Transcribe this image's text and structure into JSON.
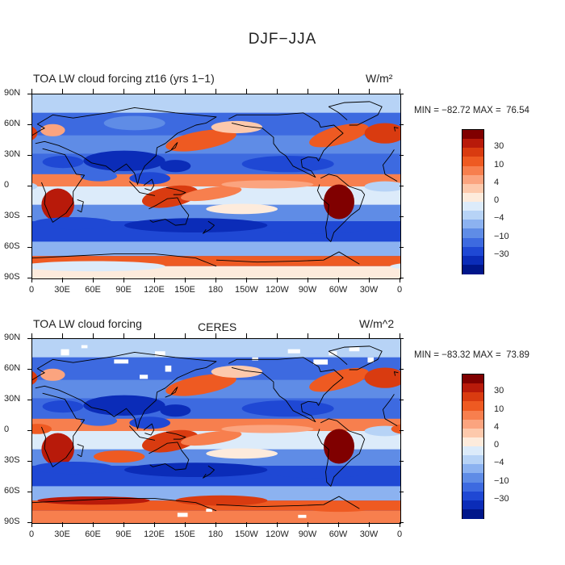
{
  "title": "DJF−JJA",
  "colors": [
    "#800000",
    "#b81a0a",
    "#d93b10",
    "#ee5a22",
    "#f77f4e",
    "#fba47f",
    "#fdc9ac",
    "#fdebdc",
    "#dcebfa",
    "#b7d3f6",
    "#8cb2f0",
    "#5f8ce6",
    "#3d6ae0",
    "#1f48d4",
    "#0b2cb8",
    "#00168a"
  ],
  "colorbar_labels": [
    "30",
    "10",
    "4",
    "0",
    "−4",
    "−10",
    "−30"
  ],
  "lat_ticks": [
    "90N",
    "60N",
    "30N",
    "0",
    "30S",
    "60S",
    "90S"
  ],
  "lon_ticks": [
    "0",
    "30E",
    "60E",
    "90E",
    "120E",
    "150E",
    "180",
    "150W",
    "120W",
    "90W",
    "60W",
    "30W",
    "0"
  ],
  "panels": [
    {
      "title": "TOA LW cloud forcing zt16 (yrs 1−1)",
      "center_title": "",
      "units": "W/m²",
      "minmax": "MIN = −82.72 MAX =  76.54"
    },
    {
      "title": "TOA LW cloud forcing",
      "center_title": "CERES",
      "units": "W/m^2",
      "minmax": "MIN = −83.32 MAX =  73.89"
    }
  ]
}
